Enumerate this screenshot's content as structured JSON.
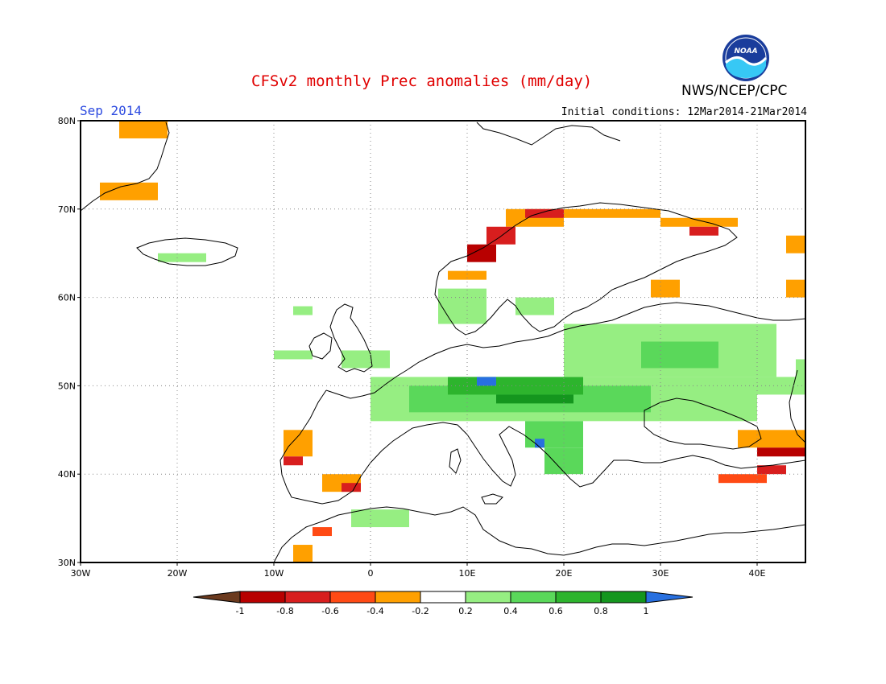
{
  "header": {
    "title": "CFSv2 monthly Prec anomalies (mm/day)",
    "agency": "NWS/NCEP/CPC",
    "month": "Sep 2014",
    "initial_conditions": "Initial conditions: 12Mar2014-21Mar2014",
    "logo_text": "NOAA"
  },
  "map": {
    "lon_range": [
      -30,
      45
    ],
    "lat_range": [
      30,
      80
    ],
    "lon_ticks": [
      "30W",
      "20W",
      "10W",
      "0",
      "10E",
      "20E",
      "30E",
      "40E"
    ],
    "lat_ticks": [
      "30N",
      "40N",
      "50N",
      "60N",
      "70N",
      "80N"
    ],
    "gridlines": "dotted"
  },
  "legend": {
    "labels": [
      "-1",
      "-0.8",
      "-0.6",
      "-0.4",
      "-0.2",
      "0.2",
      "0.4",
      "0.6",
      "0.8",
      "1"
    ],
    "colors": [
      "#6b3a1e",
      "#b80000",
      "#d81e1e",
      "#ff4a14",
      "#ffa000",
      "#ffffff",
      "#96ee82",
      "#5ad85a",
      "#2db42d",
      "#14961e",
      "#2870e0"
    ]
  },
  "anomaly_cells": [
    {
      "lon": -26,
      "lat": 78,
      "w": 5,
      "h": 2,
      "color": "#ffa000"
    },
    {
      "lon": -28,
      "lat": 71,
      "w": 6,
      "h": 2,
      "color": "#ffa000"
    },
    {
      "lon": -22,
      "lat": 64,
      "w": 5,
      "h": 1,
      "color": "#96ee82"
    },
    {
      "lon": 14,
      "lat": 68,
      "w": 6,
      "h": 2,
      "color": "#ffa000"
    },
    {
      "lon": 16,
      "lat": 69,
      "w": 4,
      "h": 1,
      "color": "#d81e1e"
    },
    {
      "lon": 12,
      "lat": 66,
      "w": 3,
      "h": 2,
      "color": "#d81e1e"
    },
    {
      "lon": 10,
      "lat": 64,
      "w": 3,
      "h": 2,
      "color": "#b80000"
    },
    {
      "lon": 8,
      "lat": 62,
      "w": 4,
      "h": 1,
      "color": "#ffa000"
    },
    {
      "lon": 20,
      "lat": 69,
      "w": 10,
      "h": 1,
      "color": "#ffa000"
    },
    {
      "lon": 30,
      "lat": 68,
      "w": 8,
      "h": 1,
      "color": "#ffa000"
    },
    {
      "lon": 33,
      "lat": 67,
      "w": 3,
      "h": 1,
      "color": "#d81e1e"
    },
    {
      "lon": 29,
      "lat": 60,
      "w": 3,
      "h": 2,
      "color": "#ffa000"
    },
    {
      "lon": 43,
      "lat": 60,
      "w": 2,
      "h": 2,
      "color": "#ffa000"
    },
    {
      "lon": 43,
      "lat": 65,
      "w": 2,
      "h": 2,
      "color": "#ffa000"
    },
    {
      "lon": 38,
      "lat": 43,
      "w": 7,
      "h": 2,
      "color": "#ffa000"
    },
    {
      "lon": 40,
      "lat": 42,
      "w": 5,
      "h": 1,
      "color": "#b80000"
    },
    {
      "lon": 40,
      "lat": 40,
      "w": 3,
      "h": 1,
      "color": "#d81e1e"
    },
    {
      "lon": 36,
      "lat": 39,
      "w": 5,
      "h": 1,
      "color": "#ff4a14"
    },
    {
      "lon": -9,
      "lat": 42,
      "w": 3,
      "h": 3,
      "color": "#ffa000"
    },
    {
      "lon": -9,
      "lat": 41,
      "w": 2,
      "h": 1,
      "color": "#d81e1e"
    },
    {
      "lon": -5,
      "lat": 38,
      "w": 4,
      "h": 2,
      "color": "#ffa000"
    },
    {
      "lon": -3,
      "lat": 38,
      "w": 2,
      "h": 1,
      "color": "#d81e1e"
    },
    {
      "lon": -6,
      "lat": 33,
      "w": 2,
      "h": 1,
      "color": "#ff4a14"
    },
    {
      "lon": -8,
      "lat": 30,
      "w": 2,
      "h": 2,
      "color": "#ffa000"
    },
    {
      "lon": 0,
      "lat": 46,
      "w": 40,
      "h": 5,
      "color": "#96ee82"
    },
    {
      "lon": 4,
      "lat": 47,
      "w": 25,
      "h": 3,
      "color": "#5ad85a"
    },
    {
      "lon": 8,
      "lat": 49,
      "w": 14,
      "h": 2,
      "color": "#2db42d"
    },
    {
      "lon": 13,
      "lat": 48,
      "w": 8,
      "h": 1,
      "color": "#14961e"
    },
    {
      "lon": 16,
      "lat": 43,
      "w": 6,
      "h": 3,
      "color": "#5ad85a"
    },
    {
      "lon": 18,
      "lat": 40,
      "w": 4,
      "h": 3,
      "color": "#5ad85a"
    },
    {
      "lon": 20,
      "lat": 51,
      "w": 22,
      "h": 6,
      "color": "#96ee82"
    },
    {
      "lon": 28,
      "lat": 52,
      "w": 8,
      "h": 3,
      "color": "#5ad85a"
    },
    {
      "lon": 11,
      "lat": 50,
      "w": 2,
      "h": 1,
      "color": "#2870e0"
    },
    {
      "lon": 17,
      "lat": 43,
      "w": 1,
      "h": 1,
      "color": "#2870e0"
    },
    {
      "lon": -8,
      "lat": 58,
      "w": 2,
      "h": 1,
      "color": "#96ee82"
    },
    {
      "lon": -10,
      "lat": 53,
      "w": 4,
      "h": 1,
      "color": "#96ee82"
    },
    {
      "lon": -3,
      "lat": 52,
      "w": 5,
      "h": 2,
      "color": "#96ee82"
    },
    {
      "lon": 7,
      "lat": 57,
      "w": 5,
      "h": 4,
      "color": "#96ee82"
    },
    {
      "lon": 15,
      "lat": 58,
      "w": 4,
      "h": 2,
      "color": "#96ee82"
    },
    {
      "lon": -2,
      "lat": 34,
      "w": 6,
      "h": 2,
      "color": "#96ee82"
    },
    {
      "lon": 44,
      "lat": 50,
      "w": 1,
      "h": 3,
      "color": "#96ee82"
    },
    {
      "lon": 40,
      "lat": 49,
      "w": 5,
      "h": 2,
      "color": "#96ee82"
    }
  ]
}
